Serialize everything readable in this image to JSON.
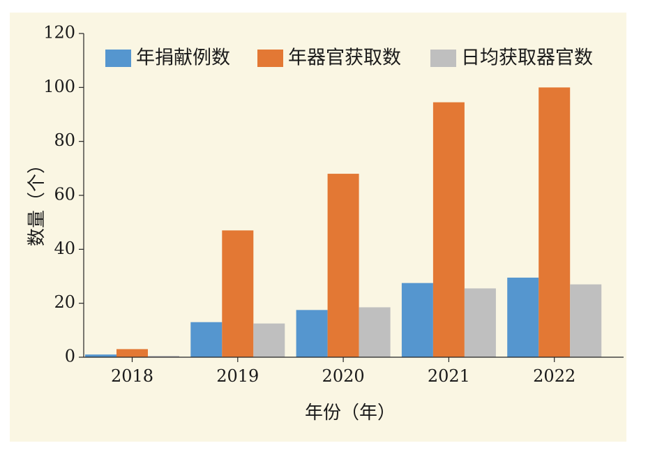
{
  "chart_data": {
    "type": "bar",
    "categories": [
      "2018",
      "2019",
      "2020",
      "2021",
      "2022"
    ],
    "series": [
      {
        "name": "年捐献例数",
        "color": "#5596cf",
        "values": [
          1,
          13,
          17.5,
          27.5,
          29.5
        ]
      },
      {
        "name": "年器官获取数",
        "color": "#e37834",
        "values": [
          3,
          47,
          68,
          94.5,
          100
        ]
      },
      {
        "name": "日均获取器官数",
        "color": "#bfbfbf",
        "values": [
          0.5,
          12.5,
          18.5,
          25.5,
          27
        ]
      }
    ],
    "xlabel": "年份（年）",
    "ylabel": "数量（个）",
    "ylim": [
      0,
      120
    ],
    "yticks": [
      0,
      20,
      40,
      60,
      80,
      100,
      120
    ],
    "grid": false,
    "legend_position": "top"
  }
}
